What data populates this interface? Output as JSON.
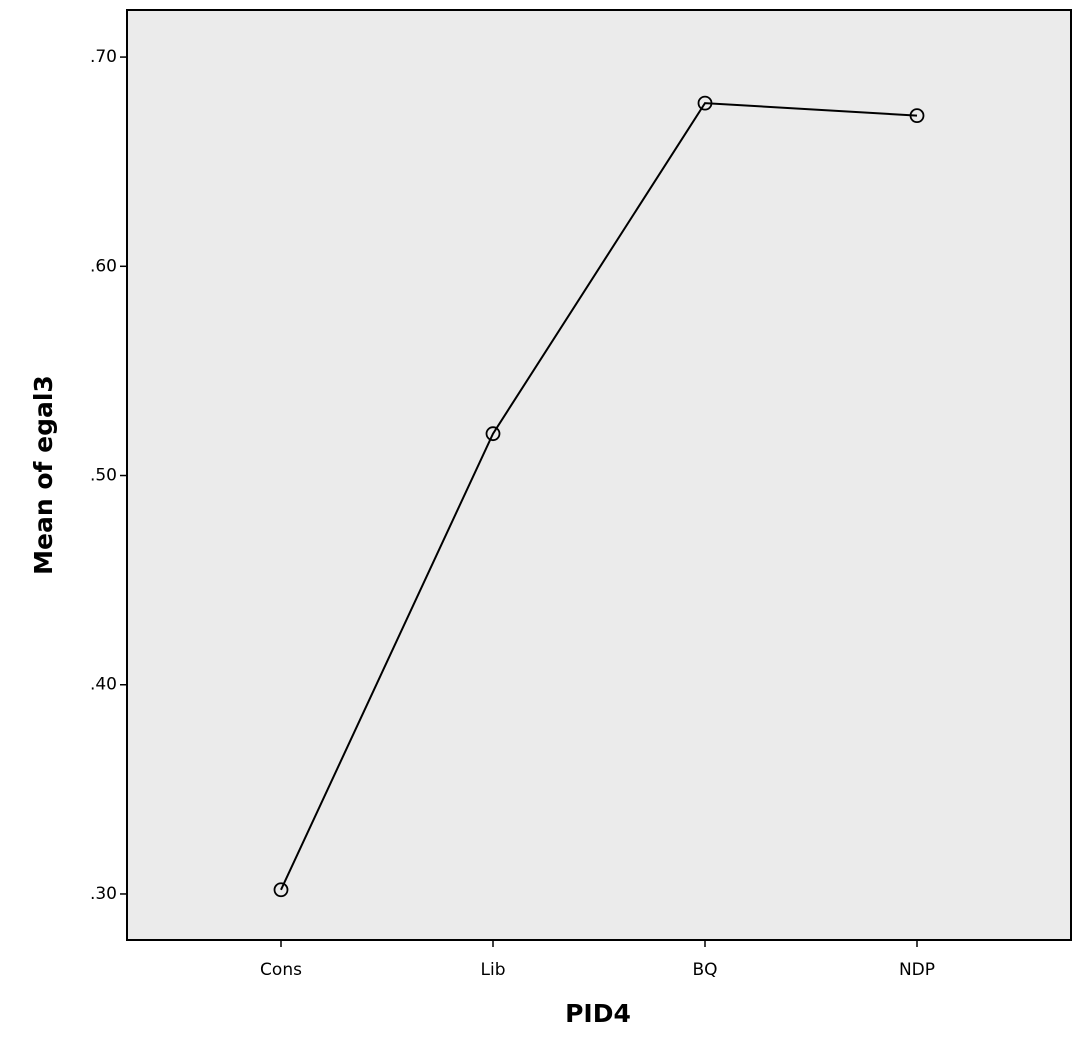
{
  "chart_data": {
    "type": "line",
    "x_label": "PID4",
    "y_label": "Mean of egal3",
    "categories": [
      "Cons",
      "Lib",
      "BQ",
      "NDP"
    ],
    "values": [
      0.302,
      0.52,
      0.678,
      0.672
    ],
    "color": "#000000",
    "ylim": [
      0.278,
      0.7225
    ],
    "yticks": [
      {
        "value": 0.3,
        "label": ".30"
      },
      {
        "value": 0.4,
        "label": ".40"
      },
      {
        "value": 0.5,
        "label": ".50"
      },
      {
        "value": 0.6,
        "label": ".60"
      },
      {
        "value": 0.7,
        "label": ".70"
      }
    ]
  }
}
